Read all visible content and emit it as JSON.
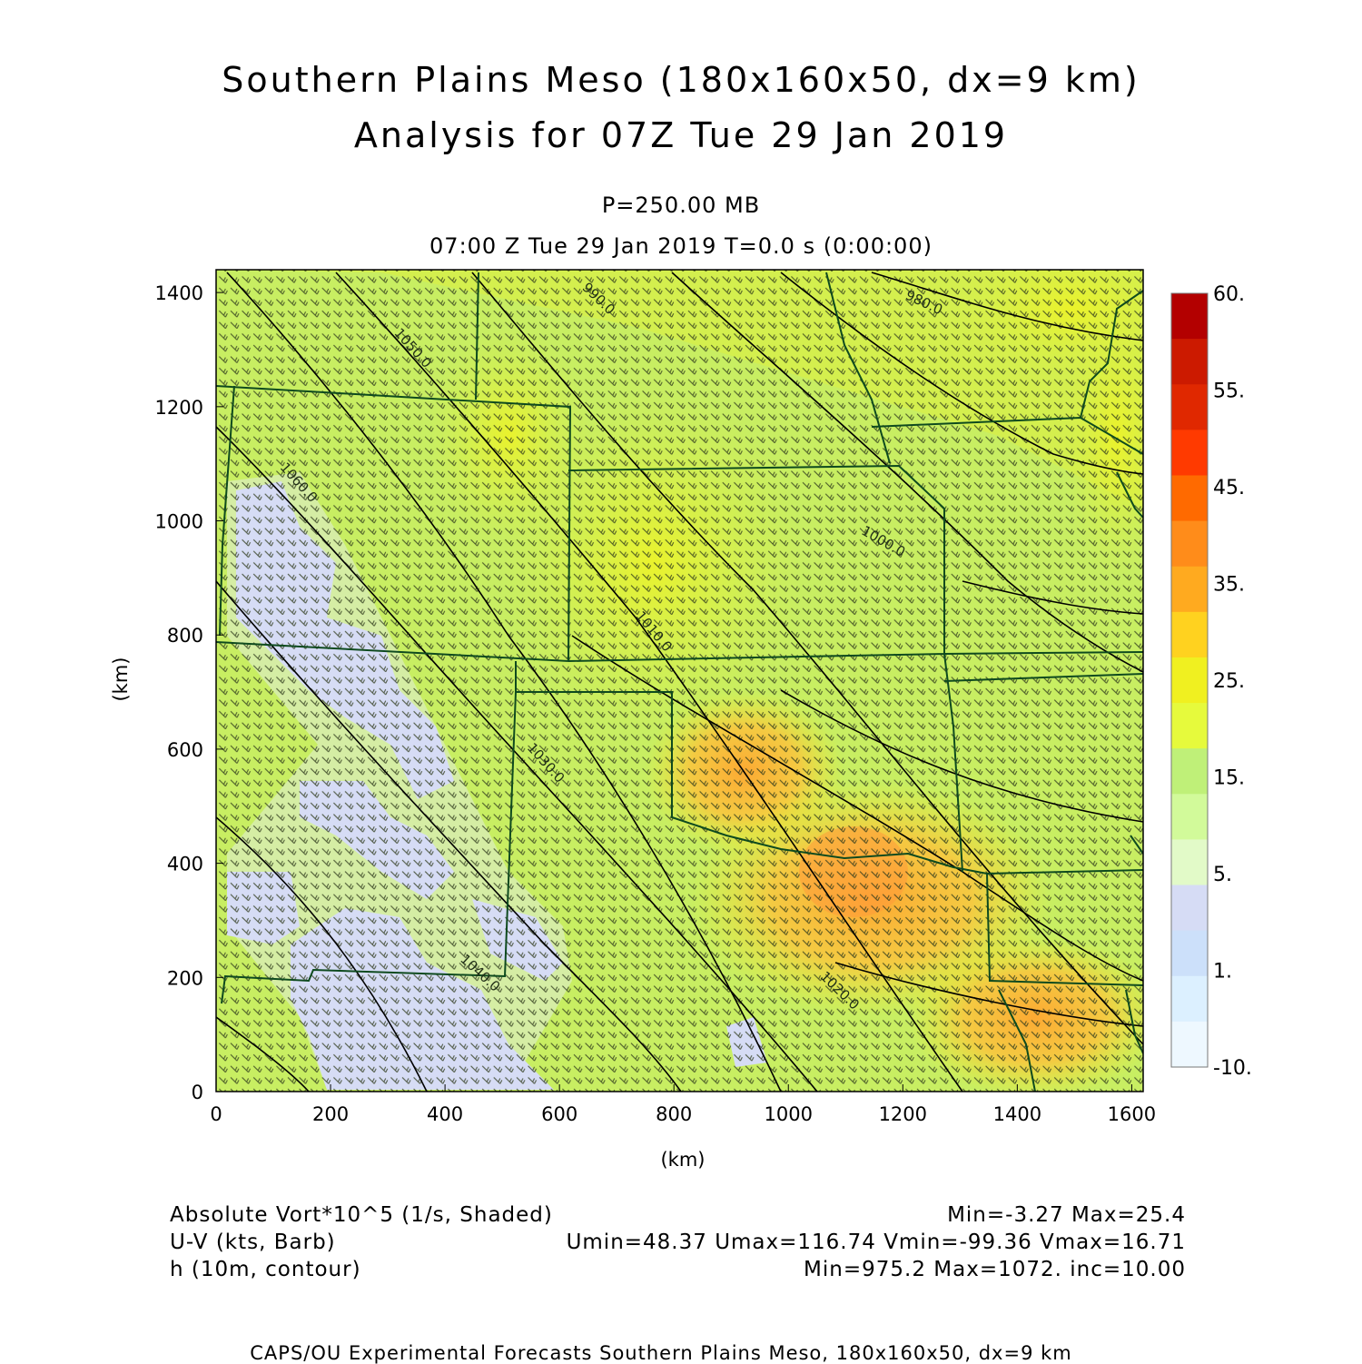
{
  "title_line1": "Southern Plains Meso (180x160x50, dx=9 km)",
  "title_line2": "Analysis for 07Z Tue 29 Jan 2019",
  "pressure_label": "P=250.00 MB",
  "time_label": "07:00 Z Tue 29 Jan 2019    T=0.0 s (0:00:00)",
  "axes": {
    "xlabel": "(km)",
    "ylabel": "(km)",
    "xlim": [
      0,
      1620
    ],
    "ylim": [
      0,
      1440
    ],
    "xticks": [
      "0",
      "200",
      "400",
      "600",
      "800",
      "1000",
      "1200",
      "1400",
      "1600"
    ],
    "yticks": [
      "0",
      "200",
      "400",
      "600",
      "800",
      "1000",
      "1200",
      "1400"
    ]
  },
  "colorbar": {
    "labels": [
      "60.",
      "55.",
      "45.",
      "35.",
      "25.",
      "15.",
      "5.",
      "1.",
      "-10."
    ],
    "colors": [
      "#b30000",
      "#cc1a00",
      "#e02800",
      "#ff3a00",
      "#ff6a00",
      "#ff8c1a",
      "#ffaa1f",
      "#ffd21f",
      "#f0f020",
      "#e6fa3c",
      "#bff078",
      "#d2fa9a",
      "#e2fac8",
      "#d6dcf5",
      "#cce0fa",
      "#dcf0ff",
      "#eef8ff"
    ]
  },
  "contour_labels": [
    "1050.0",
    "1060.0",
    "1030.0",
    "1040.0",
    "1010.0",
    "1020.0",
    "1000.0",
    "990.0",
    "980.0"
  ],
  "legend": {
    "line1_left": "Absolute Vort*10^5 (1/s, Shaded)",
    "line1_right": "Min=-3.27  Max=25.4",
    "line2_left": "U-V (kts, Barb)",
    "line2_right": "Umin=48.37  Umax=116.74  Vmin=-99.36  Vmax=16.71",
    "line3_left": "h (10m, contour)",
    "line3_right": "Min=975.2  Max=1072.  inc=10.00"
  },
  "footer": "CAPS/OU Experimental Forecasts   Southern Plains Meso, 180x160x50, dx=9 km"
}
